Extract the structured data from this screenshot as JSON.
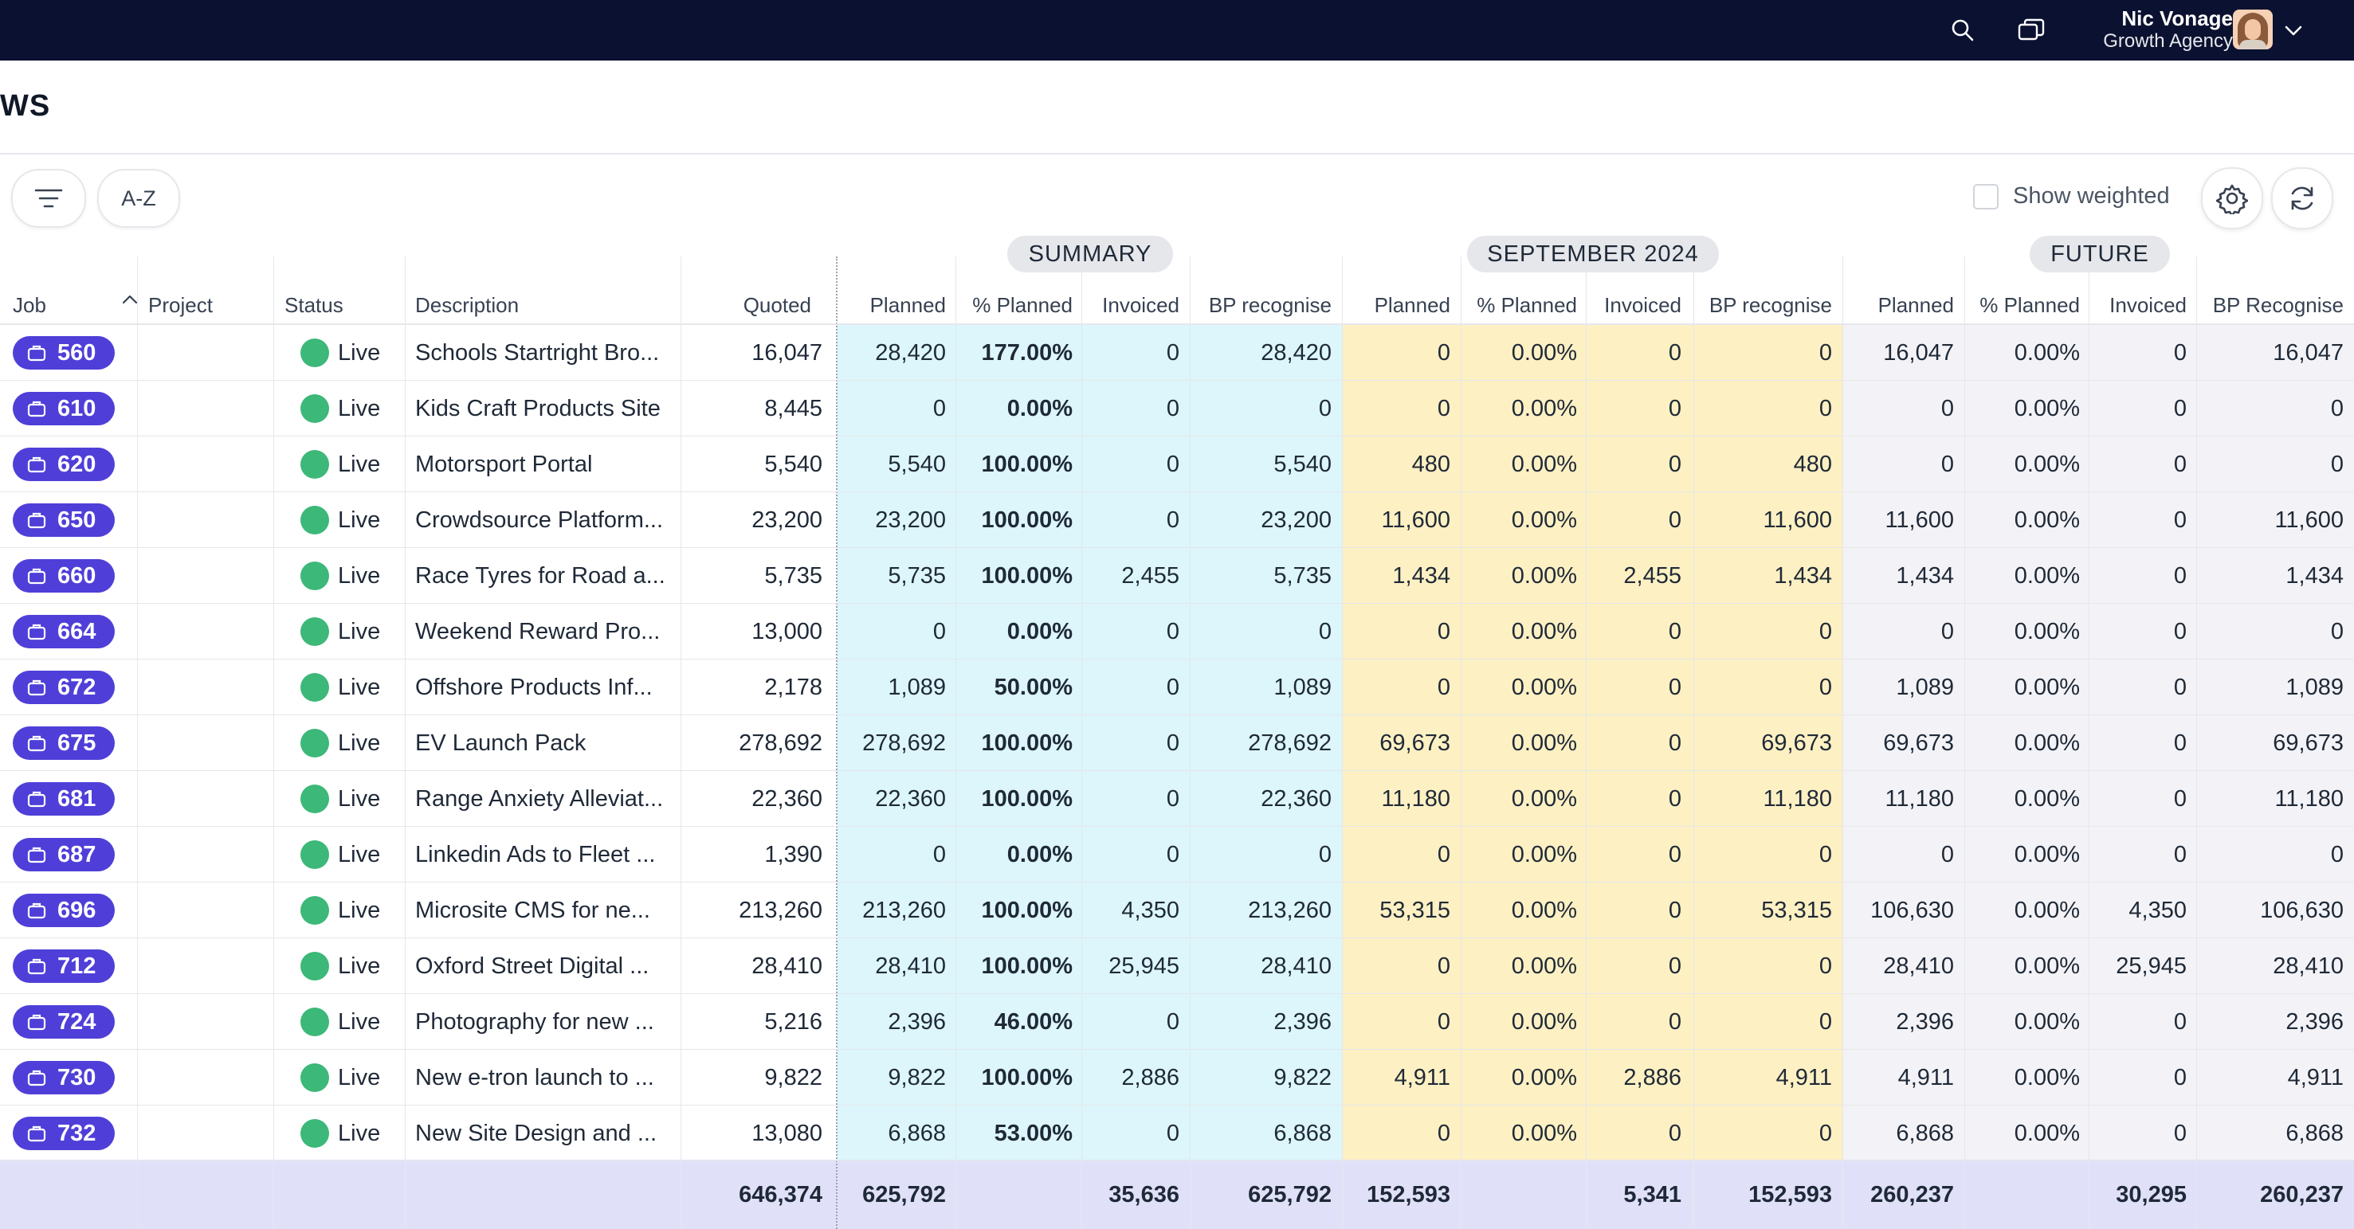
{
  "topbar": {
    "user_name": "Nic Vonage",
    "user_org": "Growth Agency",
    "icons": [
      "search-icon",
      "windows-icon",
      "chevron-down-icon"
    ]
  },
  "page": {
    "title": "WS"
  },
  "toolbar": {
    "sort_label": "A-Z",
    "show_weighted_label": "Show weighted",
    "show_weighted_checked": false
  },
  "groups": {
    "summary": "SUMMARY",
    "september": "SEPTEMBER 2024",
    "future": "FUTURE"
  },
  "columns": {
    "job": "Job",
    "project": "Project",
    "status": "Status",
    "description": "Description",
    "quoted": "Quoted",
    "s_planned": "Planned",
    "s_pct": "% Planned",
    "s_invoiced": "Invoiced",
    "s_bp": "BP recognise",
    "m_planned": "Planned",
    "m_pct": "% Planned",
    "m_invoiced": "Invoiced",
    "m_bp": "BP recognise",
    "f_planned": "Planned",
    "f_pct": "% Planned",
    "f_invoiced": "Invoiced",
    "f_bp": "BP Recognise"
  },
  "colors": {
    "summary_bg": "#dcf6fb",
    "september_bg": "#fdf0c3",
    "future_bg": "#f3f3f7",
    "badge": "#4f3fd8",
    "live": "#3cb878",
    "totals_bg": "#e0e1f9"
  },
  "rows": [
    {
      "job": "560",
      "project": "",
      "status": "Live",
      "desc": "Schools Startright Bro...",
      "quoted": "16,047",
      "s_planned": "28,420",
      "s_pct": "177.00%",
      "s_invoiced": "0",
      "s_bp": "28,420",
      "m_planned": "0",
      "m_pct": "0.00%",
      "m_invoiced": "0",
      "m_bp": "0",
      "f_planned": "16,047",
      "f_pct": "0.00%",
      "f_invoiced": "0",
      "f_bp": "16,047"
    },
    {
      "job": "610",
      "project": "",
      "status": "Live",
      "desc": "Kids Craft Products Site",
      "quoted": "8,445",
      "s_planned": "0",
      "s_pct": "0.00%",
      "s_invoiced": "0",
      "s_bp": "0",
      "m_planned": "0",
      "m_pct": "0.00%",
      "m_invoiced": "0",
      "m_bp": "0",
      "f_planned": "0",
      "f_pct": "0.00%",
      "f_invoiced": "0",
      "f_bp": "0"
    },
    {
      "job": "620",
      "project": "",
      "status": "Live",
      "desc": "Motorsport Portal",
      "quoted": "5,540",
      "s_planned": "5,540",
      "s_pct": "100.00%",
      "s_invoiced": "0",
      "s_bp": "5,540",
      "m_planned": "480",
      "m_pct": "0.00%",
      "m_invoiced": "0",
      "m_bp": "480",
      "f_planned": "0",
      "f_pct": "0.00%",
      "f_invoiced": "0",
      "f_bp": "0"
    },
    {
      "job": "650",
      "project": "",
      "status": "Live",
      "desc": "Crowdsource Platform...",
      "quoted": "23,200",
      "s_planned": "23,200",
      "s_pct": "100.00%",
      "s_invoiced": "0",
      "s_bp": "23,200",
      "m_planned": "11,600",
      "m_pct": "0.00%",
      "m_invoiced": "0",
      "m_bp": "11,600",
      "f_planned": "11,600",
      "f_pct": "0.00%",
      "f_invoiced": "0",
      "f_bp": "11,600"
    },
    {
      "job": "660",
      "project": "",
      "status": "Live",
      "desc": "Race Tyres for Road a...",
      "quoted": "5,735",
      "s_planned": "5,735",
      "s_pct": "100.00%",
      "s_invoiced": "2,455",
      "s_bp": "5,735",
      "m_planned": "1,434",
      "m_pct": "0.00%",
      "m_invoiced": "2,455",
      "m_bp": "1,434",
      "f_planned": "1,434",
      "f_pct": "0.00%",
      "f_invoiced": "0",
      "f_bp": "1,434"
    },
    {
      "job": "664",
      "project": "",
      "status": "Live",
      "desc": "Weekend Reward Pro...",
      "quoted": "13,000",
      "s_planned": "0",
      "s_pct": "0.00%",
      "s_invoiced": "0",
      "s_bp": "0",
      "m_planned": "0",
      "m_pct": "0.00%",
      "m_invoiced": "0",
      "m_bp": "0",
      "f_planned": "0",
      "f_pct": "0.00%",
      "f_invoiced": "0",
      "f_bp": "0"
    },
    {
      "job": "672",
      "project": "",
      "status": "Live",
      "desc": "Offshore Products Inf...",
      "quoted": "2,178",
      "s_planned": "1,089",
      "s_pct": "50.00%",
      "s_invoiced": "0",
      "s_bp": "1,089",
      "m_planned": "0",
      "m_pct": "0.00%",
      "m_invoiced": "0",
      "m_bp": "0",
      "f_planned": "1,089",
      "f_pct": "0.00%",
      "f_invoiced": "0",
      "f_bp": "1,089"
    },
    {
      "job": "675",
      "project": "",
      "status": "Live",
      "desc": "EV Launch Pack",
      "quoted": "278,692",
      "s_planned": "278,692",
      "s_pct": "100.00%",
      "s_invoiced": "0",
      "s_bp": "278,692",
      "m_planned": "69,673",
      "m_pct": "0.00%",
      "m_invoiced": "0",
      "m_bp": "69,673",
      "f_planned": "69,673",
      "f_pct": "0.00%",
      "f_invoiced": "0",
      "f_bp": "69,673"
    },
    {
      "job": "681",
      "project": "",
      "status": "Live",
      "desc": "Range Anxiety Alleviat...",
      "quoted": "22,360",
      "s_planned": "22,360",
      "s_pct": "100.00%",
      "s_invoiced": "0",
      "s_bp": "22,360",
      "m_planned": "11,180",
      "m_pct": "0.00%",
      "m_invoiced": "0",
      "m_bp": "11,180",
      "f_planned": "11,180",
      "f_pct": "0.00%",
      "f_invoiced": "0",
      "f_bp": "11,180"
    },
    {
      "job": "687",
      "project": "",
      "status": "Live",
      "desc": "Linkedin Ads to Fleet ...",
      "quoted": "1,390",
      "s_planned": "0",
      "s_pct": "0.00%",
      "s_invoiced": "0",
      "s_bp": "0",
      "m_planned": "0",
      "m_pct": "0.00%",
      "m_invoiced": "0",
      "m_bp": "0",
      "f_planned": "0",
      "f_pct": "0.00%",
      "f_invoiced": "0",
      "f_bp": "0"
    },
    {
      "job": "696",
      "project": "",
      "status": "Live",
      "desc": "Microsite CMS for ne...",
      "quoted": "213,260",
      "s_planned": "213,260",
      "s_pct": "100.00%",
      "s_invoiced": "4,350",
      "s_bp": "213,260",
      "m_planned": "53,315",
      "m_pct": "0.00%",
      "m_invoiced": "0",
      "m_bp": "53,315",
      "f_planned": "106,630",
      "f_pct": "0.00%",
      "f_invoiced": "4,350",
      "f_bp": "106,630"
    },
    {
      "job": "712",
      "project": "",
      "status": "Live",
      "desc": "Oxford Street Digital ...",
      "quoted": "28,410",
      "s_planned": "28,410",
      "s_pct": "100.00%",
      "s_invoiced": "25,945",
      "s_bp": "28,410",
      "m_planned": "0",
      "m_pct": "0.00%",
      "m_invoiced": "0",
      "m_bp": "0",
      "f_planned": "28,410",
      "f_pct": "0.00%",
      "f_invoiced": "25,945",
      "f_bp": "28,410"
    },
    {
      "job": "724",
      "project": "",
      "status": "Live",
      "desc": "Photography for new ...",
      "quoted": "5,216",
      "s_planned": "2,396",
      "s_pct": "46.00%",
      "s_invoiced": "0",
      "s_bp": "2,396",
      "m_planned": "0",
      "m_pct": "0.00%",
      "m_invoiced": "0",
      "m_bp": "0",
      "f_planned": "2,396",
      "f_pct": "0.00%",
      "f_invoiced": "0",
      "f_bp": "2,396"
    },
    {
      "job": "730",
      "project": "",
      "status": "Live",
      "desc": "New e-tron launch to ...",
      "quoted": "9,822",
      "s_planned": "9,822",
      "s_pct": "100.00%",
      "s_invoiced": "2,886",
      "s_bp": "9,822",
      "m_planned": "4,911",
      "m_pct": "0.00%",
      "m_invoiced": "2,886",
      "m_bp": "4,911",
      "f_planned": "4,911",
      "f_pct": "0.00%",
      "f_invoiced": "0",
      "f_bp": "4,911"
    },
    {
      "job": "732",
      "project": "",
      "status": "Live",
      "desc": "New Site Design and ...",
      "quoted": "13,080",
      "s_planned": "6,868",
      "s_pct": "53.00%",
      "s_invoiced": "0",
      "s_bp": "6,868",
      "m_planned": "0",
      "m_pct": "0.00%",
      "m_invoiced": "0",
      "m_bp": "0",
      "f_planned": "6,868",
      "f_pct": "0.00%",
      "f_invoiced": "0",
      "f_bp": "6,868"
    }
  ],
  "totals": {
    "quoted": "646,374",
    "s_planned": "625,792",
    "s_invoiced": "35,636",
    "s_bp": "625,792",
    "m_planned": "152,593",
    "m_invoiced": "5,341",
    "m_bp": "152,593",
    "f_planned": "260,237",
    "f_invoiced": "30,295",
    "f_bp": "260,237"
  }
}
